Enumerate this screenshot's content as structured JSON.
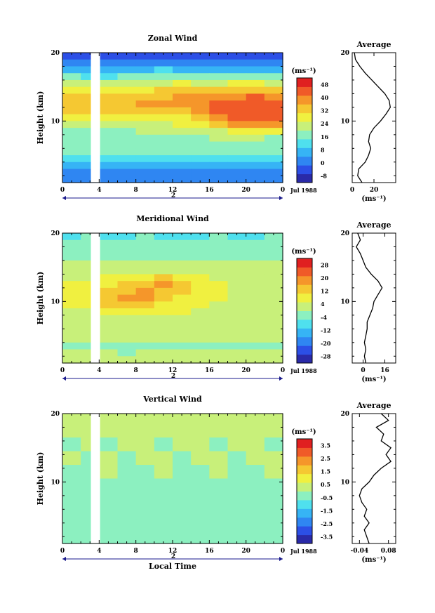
{
  "chart_data": [
    {
      "type": "heatmap",
      "title": "Zonal Wind",
      "ylabel": "Height (km)",
      "xlabel": "",
      "x_ticks": [
        "0",
        "4",
        "8",
        "12",
        "16",
        "20",
        "0"
      ],
      "xlim": [
        0,
        24
      ],
      "y_ticks": [
        "10",
        "20"
      ],
      "ylim": [
        1,
        20
      ],
      "day_label": "2",
      "date_label": "Jul 1988",
      "colorbar": {
        "unit": "(ms⁻¹)",
        "levels": [
          "48",
          "40",
          "32",
          "24",
          "16",
          "8",
          "0",
          "-8"
        ],
        "vmin": -8,
        "vmax": 52
      },
      "gaps": [
        [
          3.1,
          4.1
        ]
      ],
      "rows": [
        {
          "h": 19.5,
          "v": [
            -2,
            -2,
            -3,
            -2,
            -2,
            -3,
            -2,
            -2,
            -3,
            -2,
            -2,
            -3
          ]
        },
        {
          "h": 18.5,
          "v": [
            4,
            3,
            3,
            4,
            4,
            5,
            4,
            3,
            4,
            5,
            4,
            3
          ]
        },
        {
          "h": 17.5,
          "v": [
            10,
            9,
            9,
            10,
            11,
            12,
            10,
            10,
            11,
            10,
            10,
            9
          ]
        },
        {
          "h": 16.5,
          "v": [
            18,
            16,
            16,
            17,
            18,
            19,
            20,
            18,
            18,
            19,
            18,
            17
          ]
        },
        {
          "h": 15.5,
          "v": [
            24,
            22,
            22,
            24,
            25,
            26,
            27,
            26,
            26,
            28,
            27,
            26
          ]
        },
        {
          "h": 14.5,
          "v": [
            30,
            28,
            28,
            30,
            31,
            32,
            33,
            34,
            34,
            36,
            36,
            34
          ]
        },
        {
          "h": 13.5,
          "v": [
            34,
            33,
            32,
            34,
            35,
            36,
            37,
            38,
            40,
            41,
            42,
            41
          ]
        },
        {
          "h": 12.5,
          "v": [
            36,
            35,
            34,
            36,
            37,
            38,
            38,
            40,
            42,
            44,
            45,
            44
          ]
        },
        {
          "h": 11.5,
          "v": [
            34,
            33,
            32,
            34,
            34,
            35,
            35,
            37,
            42,
            46,
            46,
            45
          ]
        },
        {
          "h": 10.5,
          "v": [
            30,
            30,
            29,
            30,
            30,
            30,
            31,
            34,
            40,
            45,
            46,
            44
          ]
        },
        {
          "h": 9.5,
          "v": [
            26,
            26,
            26,
            26,
            26,
            26,
            27,
            30,
            34,
            38,
            40,
            38
          ]
        },
        {
          "h": 8.5,
          "v": [
            20,
            20,
            21,
            21,
            22,
            22,
            23,
            24,
            26,
            28,
            30,
            28
          ]
        },
        {
          "h": 7.5,
          "v": [
            18,
            19,
            19,
            20,
            20,
            20,
            20,
            21,
            22,
            22,
            22,
            21
          ]
        },
        {
          "h": 6.5,
          "v": [
            20,
            20,
            20,
            20,
            20,
            21,
            21,
            21,
            20,
            20,
            20,
            20
          ]
        },
        {
          "h": 5.5,
          "v": [
            18,
            18,
            18,
            18,
            18,
            18,
            18,
            18,
            18,
            18,
            18,
            18
          ]
        },
        {
          "h": 4.5,
          "v": [
            14,
            14,
            14,
            15,
            15,
            15,
            14,
            14,
            14,
            14,
            14,
            14
          ]
        },
        {
          "h": 3.5,
          "v": [
            10,
            10,
            10,
            11,
            11,
            11,
            10,
            10,
            10,
            10,
            10,
            10
          ]
        },
        {
          "h": 2.5,
          "v": [
            4,
            4,
            5,
            5,
            5,
            5,
            4,
            4,
            4,
            4,
            4,
            4
          ]
        },
        {
          "h": 1.5,
          "v": [
            6,
            6,
            6,
            6,
            6,
            6,
            6,
            6,
            6,
            6,
            6,
            6
          ]
        }
      ],
      "profile": {
        "title": "Average",
        "x_ticks": [
          "0",
          "20"
        ],
        "xlim": [
          0,
          40
        ],
        "unit": "(ms⁻¹)",
        "y": [
          1,
          2,
          3,
          4,
          5,
          6,
          7,
          8,
          9,
          10,
          11,
          12,
          13,
          14,
          15,
          16,
          17,
          18,
          19,
          20
        ],
        "x": [
          9,
          5,
          6,
          12,
          15,
          17,
          15,
          16,
          20,
          26,
          31,
          35,
          34,
          30,
          24,
          18,
          12,
          7,
          3,
          2
        ]
      }
    },
    {
      "type": "heatmap",
      "title": "Meridional Wind",
      "ylabel": "Height (km)",
      "xlabel": "",
      "x_ticks": [
        "0",
        "4",
        "8",
        "12",
        "16",
        "20",
        "0"
      ],
      "xlim": [
        0,
        24
      ],
      "y_ticks": [
        "10",
        "20"
      ],
      "ylim": [
        1,
        20
      ],
      "day_label": "2",
      "date_label": "Jul 1988",
      "colorbar": {
        "unit": "(ms⁻¹)",
        "levels": [
          "28",
          "20",
          "12",
          "4",
          "-4",
          "-12",
          "-20",
          "-28"
        ],
        "vmin": -32,
        "vmax": 32
      },
      "gaps": [
        [
          3.1,
          4.1
        ]
      ],
      "rows": [
        {
          "h": 19.5,
          "v": [
            -6,
            -5,
            -7,
            -6,
            -5,
            -6,
            -7,
            -6,
            -5,
            -6,
            -6,
            -5
          ]
        },
        {
          "h": 18.5,
          "v": [
            -4,
            -3,
            -5,
            -4,
            -3,
            -4,
            -5,
            -4,
            -3,
            -4,
            -4,
            -3
          ]
        },
        {
          "h": 17.5,
          "v": [
            -2,
            -1,
            -2,
            -2,
            -1,
            -2,
            -3,
            -2,
            -1,
            -2,
            -2,
            -1
          ]
        },
        {
          "h": 16.5,
          "v": [
            -4,
            -3,
            -4,
            -5,
            -4,
            -3,
            -4,
            -5,
            -4,
            -3,
            -4,
            -4
          ]
        },
        {
          "h": 15.5,
          "v": [
            0,
            0,
            1,
            1,
            2,
            2,
            1,
            1,
            0,
            0,
            0,
            0
          ]
        },
        {
          "h": 14.5,
          "v": [
            2,
            2,
            3,
            4,
            5,
            5,
            4,
            3,
            2,
            2,
            2,
            2
          ]
        },
        {
          "h": 13.5,
          "v": [
            4,
            5,
            6,
            8,
            10,
            11,
            9,
            6,
            4,
            3,
            3,
            2
          ]
        },
        {
          "h": 12.5,
          "v": [
            6,
            7,
            9,
            12,
            14,
            16,
            12,
            8,
            6,
            5,
            4,
            3
          ]
        },
        {
          "h": 11.5,
          "v": [
            8,
            9,
            12,
            15,
            16,
            15,
            12,
            9,
            7,
            5,
            4,
            3
          ]
        },
        {
          "h": 10.5,
          "v": [
            7,
            9,
            13,
            17,
            16,
            13,
            10,
            8,
            6,
            5,
            4,
            4
          ]
        },
        {
          "h": 9.5,
          "v": [
            6,
            8,
            11,
            13,
            12,
            10,
            8,
            6,
            5,
            4,
            4,
            3
          ]
        },
        {
          "h": 8.5,
          "v": [
            4,
            5,
            7,
            8,
            8,
            7,
            6,
            5,
            4,
            4,
            3,
            3
          ]
        },
        {
          "h": 7.5,
          "v": [
            2,
            3,
            4,
            5,
            5,
            5,
            4,
            3,
            3,
            2,
            2,
            2
          ]
        },
        {
          "h": 6.5,
          "v": [
            1,
            1,
            2,
            2,
            2,
            2,
            2,
            1,
            1,
            1,
            1,
            1
          ]
        },
        {
          "h": 5.5,
          "v": [
            0,
            0,
            1,
            1,
            1,
            1,
            0,
            0,
            0,
            0,
            0,
            0
          ]
        },
        {
          "h": 4.5,
          "v": [
            0,
            0,
            0,
            0,
            0,
            0,
            0,
            0,
            0,
            0,
            0,
            0
          ]
        },
        {
          "h": 3.5,
          "v": [
            -2,
            -1,
            -2,
            -2,
            -1,
            -1,
            -2,
            -1,
            -1,
            -2,
            -1,
            -1
          ]
        },
        {
          "h": 2.5,
          "v": [
            0,
            0,
            0,
            -1,
            0,
            0,
            0,
            0,
            0,
            0,
            0,
            0
          ]
        },
        {
          "h": 1.5,
          "v": [
            1,
            1,
            1,
            1,
            1,
            1,
            1,
            1,
            1,
            1,
            1,
            1
          ]
        }
      ],
      "profile": {
        "title": "Average",
        "x_ticks": [
          "0",
          "16"
        ],
        "xlim": [
          -8,
          24
        ],
        "unit": "(ms⁻¹)",
        "y": [
          1,
          2,
          3,
          4,
          5,
          6,
          7,
          8,
          9,
          10,
          11,
          12,
          13,
          14,
          15,
          16,
          17,
          18,
          19,
          20
        ],
        "x": [
          2,
          1,
          2,
          1,
          2,
          3,
          3,
          5,
          7,
          8,
          11,
          14,
          11,
          6,
          2,
          0,
          -2,
          -5,
          -2,
          -4
        ]
      }
    },
    {
      "type": "heatmap",
      "title": "Vertical Wind",
      "ylabel": "Height (km)",
      "xlabel": "Local Time",
      "x_ticks": [
        "0",
        "4",
        "8",
        "12",
        "16",
        "20",
        "0"
      ],
      "xlim": [
        0,
        24
      ],
      "y_ticks": [
        "10",
        "20"
      ],
      "ylim": [
        1,
        20
      ],
      "day_label": "2",
      "date_label": "Jul 1988",
      "colorbar": {
        "unit": "(ms⁻¹)",
        "levels": [
          "3.5",
          "2.5",
          "1.5",
          "0.5",
          "-0.5",
          "-1.5",
          "-2.5",
          "-3.5"
        ],
        "vmin": -4,
        "vmax": 4
      },
      "gaps": [
        [
          3.1,
          4.1
        ]
      ],
      "rows": [
        {
          "h": 19.5,
          "v": [
            0.1,
            0.2,
            0.1,
            0.1,
            0.2,
            0.1,
            0.1,
            0.1,
            0.2,
            0.1,
            0.1,
            0.1
          ]
        },
        {
          "h": 17.5,
          "v": [
            0.0,
            0.1,
            0.0,
            0.0,
            0.1,
            0.0,
            0.0,
            0.1,
            0.0,
            0.0,
            0.1,
            0.0
          ]
        },
        {
          "h": 15.5,
          "v": [
            -0.1,
            0.0,
            -0.1,
            0.0,
            0.0,
            -0.1,
            0.0,
            0.0,
            -0.1,
            0.0,
            0.0,
            -0.1
          ]
        },
        {
          "h": 13.5,
          "v": [
            0.0,
            -0.1,
            0.0,
            -0.1,
            0.0,
            0.0,
            -0.1,
            0.0,
            0.0,
            -0.1,
            0.0,
            0.0
          ]
        },
        {
          "h": 11.5,
          "v": [
            -0.1,
            -0.1,
            0.0,
            -0.1,
            -0.1,
            0.0,
            -0.1,
            -0.1,
            0.0,
            -0.1,
            -0.1,
            0.0
          ]
        },
        {
          "h": 9.5,
          "v": [
            -0.2,
            -0.1,
            -0.2,
            -0.1,
            -0.2,
            -0.1,
            -0.2,
            -0.1,
            -0.2,
            -0.1,
            -0.2,
            -0.1
          ]
        },
        {
          "h": 7.5,
          "v": [
            -0.1,
            -0.2,
            -0.1,
            -0.2,
            -0.1,
            -0.2,
            -0.1,
            -0.2,
            -0.1,
            -0.2,
            -0.1,
            -0.2
          ]
        },
        {
          "h": 5.5,
          "v": [
            -0.2,
            -0.2,
            -0.1,
            -0.2,
            -0.2,
            -0.1,
            -0.2,
            -0.2,
            -0.1,
            -0.2,
            -0.2,
            -0.1
          ]
        },
        {
          "h": 3.5,
          "v": [
            -0.1,
            -0.1,
            -0.2,
            -0.1,
            -0.1,
            -0.2,
            -0.1,
            -0.1,
            -0.2,
            -0.1,
            -0.1,
            -0.2
          ]
        },
        {
          "h": 1.5,
          "v": [
            -0.1,
            -0.1,
            -0.1,
            -0.1,
            -0.1,
            -0.1,
            -0.1,
            -0.1,
            -0.1,
            -0.1,
            -0.1,
            -0.1
          ]
        }
      ],
      "profile": {
        "title": "Average",
        "x_ticks": [
          "-0.04",
          "0.08"
        ],
        "xlim": [
          -0.07,
          0.11
        ],
        "unit": "(ms⁻¹)",
        "y": [
          1,
          2,
          3,
          4,
          5,
          6,
          7,
          8,
          9,
          10,
          11,
          12,
          13,
          14,
          15,
          16,
          17,
          18,
          19,
          20
        ],
        "x": [
          0.0,
          -0.01,
          -0.02,
          0.0,
          -0.02,
          -0.01,
          -0.03,
          -0.04,
          -0.03,
          0.0,
          0.02,
          0.05,
          0.09,
          0.07,
          0.09,
          0.05,
          0.06,
          0.03,
          0.08,
          0.05
        ]
      }
    }
  ],
  "colormap": [
    "#2a2aa8",
    "#2c4fe6",
    "#2f86f2",
    "#36b4f5",
    "#4fe0ee",
    "#8cf0c0",
    "#c8f07a",
    "#f0f040",
    "#f5c832",
    "#f5962a",
    "#f05a28",
    "#e02020"
  ]
}
